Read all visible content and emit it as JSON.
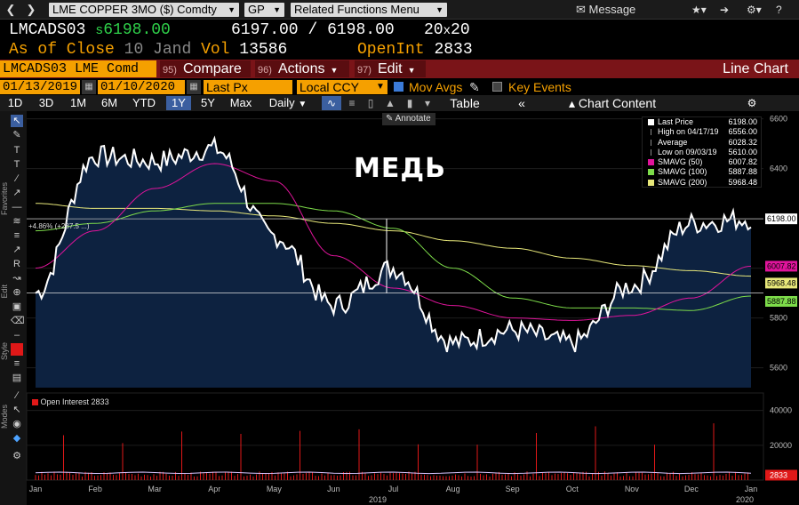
{
  "topbar": {
    "back_icon": "chevron-left",
    "forward_icon": "chevron-right",
    "security": "LME COPPER 3MO ($) Comdty",
    "function": "GP",
    "related": "Related Functions Menu",
    "message": "Message",
    "icons": [
      "envelope-icon",
      "star-icon",
      "arrow-icon",
      "gear-icon",
      "question-icon"
    ]
  },
  "quote": {
    "ticker": "LMCADS03",
    "last_prefix": "s",
    "last": "6198.00",
    "bid": "6197.00",
    "slash": "/",
    "ask": "6198.00",
    "size_bid": "20",
    "size_x": "x",
    "size_ask": "20",
    "asof_label": "As of Close",
    "asof_date": "10 Jand",
    "vol_label": "Vol",
    "vol": "13586",
    "oi_label": "OpenInt",
    "oi": "2833"
  },
  "function_bar": {
    "ticker_field": "LMCADS03 LME Comd",
    "compare_num": "95)",
    "compare": "Compare",
    "actions_num": "96)",
    "actions": "Actions",
    "edit_num": "97)",
    "edit": "Edit",
    "title": "Line Chart"
  },
  "options": {
    "start_date": "01/13/2019",
    "end_date": "01/10/2020",
    "field": "Last Px",
    "currency": "Local CCY",
    "mov_avgs": "Mov Avgs",
    "key_events": "Key Events"
  },
  "periods": [
    "1D",
    "3D",
    "1M",
    "6M",
    "YTD",
    "1Y",
    "5Y",
    "Max"
  ],
  "selected_period": "1Y",
  "frequency": "Daily",
  "table_label": "Table",
  "chart_content_label": "Chart Content",
  "annotate_label": "Annotate",
  "left_toolbar": {
    "favorites": "Favorites",
    "edit": "Edit",
    "style": "Style",
    "modes": "Modes"
  },
  "chart_overlay_title": "МЕДЬ",
  "measure_label": "+4.86% (+287.5 ...)",
  "colors": {
    "price_line": "#ffffff",
    "price_fill": "#0d2240",
    "sma50": "#e0149b",
    "sma100": "#7ddc4a",
    "sma200": "#e8e87a",
    "oi_bar": "#e01818",
    "oi_line": "#d8c4ff",
    "accent": "#f5a000",
    "redbar": "#7a1418"
  },
  "legend": [
    {
      "name": "Last Price",
      "value": "6198.00",
      "color": "#ffffff"
    },
    {
      "name": "High on 04/17/19",
      "value": "6556.00",
      "color": ""
    },
    {
      "name": "Average",
      "value": "6028.32",
      "color": ""
    },
    {
      "name": "Low on 09/03/19",
      "value": "5610.00",
      "color": ""
    },
    {
      "name": "SMAVG (50)",
      "value": "6007.82",
      "color": "#e0149b"
    },
    {
      "name": "SMAVG (100)",
      "value": "5887.88",
      "color": "#7ddc4a"
    },
    {
      "name": "SMAVG (200)",
      "value": "5968.48",
      "color": "#e8e87a"
    }
  ],
  "oi_legend": "Open Interest 2833",
  "chart_data": [
    {
      "type": "line",
      "title": "",
      "x_ticks": [
        "Jan",
        "Feb",
        "Mar",
        "Apr",
        "May",
        "Jun",
        "Jul",
        "Aug",
        "Sep",
        "Oct",
        "Nov",
        "Dec",
        "Jan"
      ],
      "x_year_labels": [
        "2019",
        "2020"
      ],
      "y_ticks": [
        5600,
        5800,
        6000,
        6200,
        6400,
        6600
      ],
      "ylim": [
        5520,
        6620
      ],
      "series": [
        {
          "name": "Last Price",
          "x": [
            "Jan",
            "Feb",
            "Mar",
            "Apr",
            "May",
            "Jun",
            "Jul",
            "Aug",
            "Sep",
            "Oct",
            "Nov",
            "Dec",
            "Jan"
          ],
          "values": [
            5900,
            6450,
            6430,
            6480,
            6130,
            5850,
            6000,
            5700,
            5750,
            5700,
            5930,
            6180,
            6198
          ]
        },
        {
          "name": "SMAVG (50)",
          "values": [
            6000,
            6150,
            6320,
            6420,
            6350,
            6050,
            5920,
            5850,
            5800,
            5790,
            5810,
            5880,
            6008
          ]
        },
        {
          "name": "SMAVG (100)",
          "values": [
            6150,
            6180,
            6230,
            6260,
            6260,
            6230,
            6160,
            6000,
            5880,
            5840,
            5840,
            5830,
            5888
          ]
        },
        {
          "name": "SMAVG (200)",
          "values": [
            6260,
            6240,
            6240,
            6230,
            6210,
            6180,
            6150,
            6110,
            6080,
            6040,
            6010,
            5990,
            5968
          ]
        }
      ],
      "price_labels": [
        {
          "value": "6198.00",
          "series": "Last Price"
        },
        {
          "value": "6007.82",
          "series": "SMAVG (50)"
        },
        {
          "value": "5968.48",
          "series": "SMAVG (200)"
        },
        {
          "value": "5887.88",
          "series": "SMAVG (100)"
        }
      ]
    },
    {
      "type": "bar",
      "title": "",
      "series": [
        {
          "name": "Open Interest",
          "last": 2833
        }
      ],
      "y_ticks": [
        20000,
        40000
      ],
      "ylim": [
        0,
        48000
      ],
      "last_label": "2833"
    }
  ]
}
